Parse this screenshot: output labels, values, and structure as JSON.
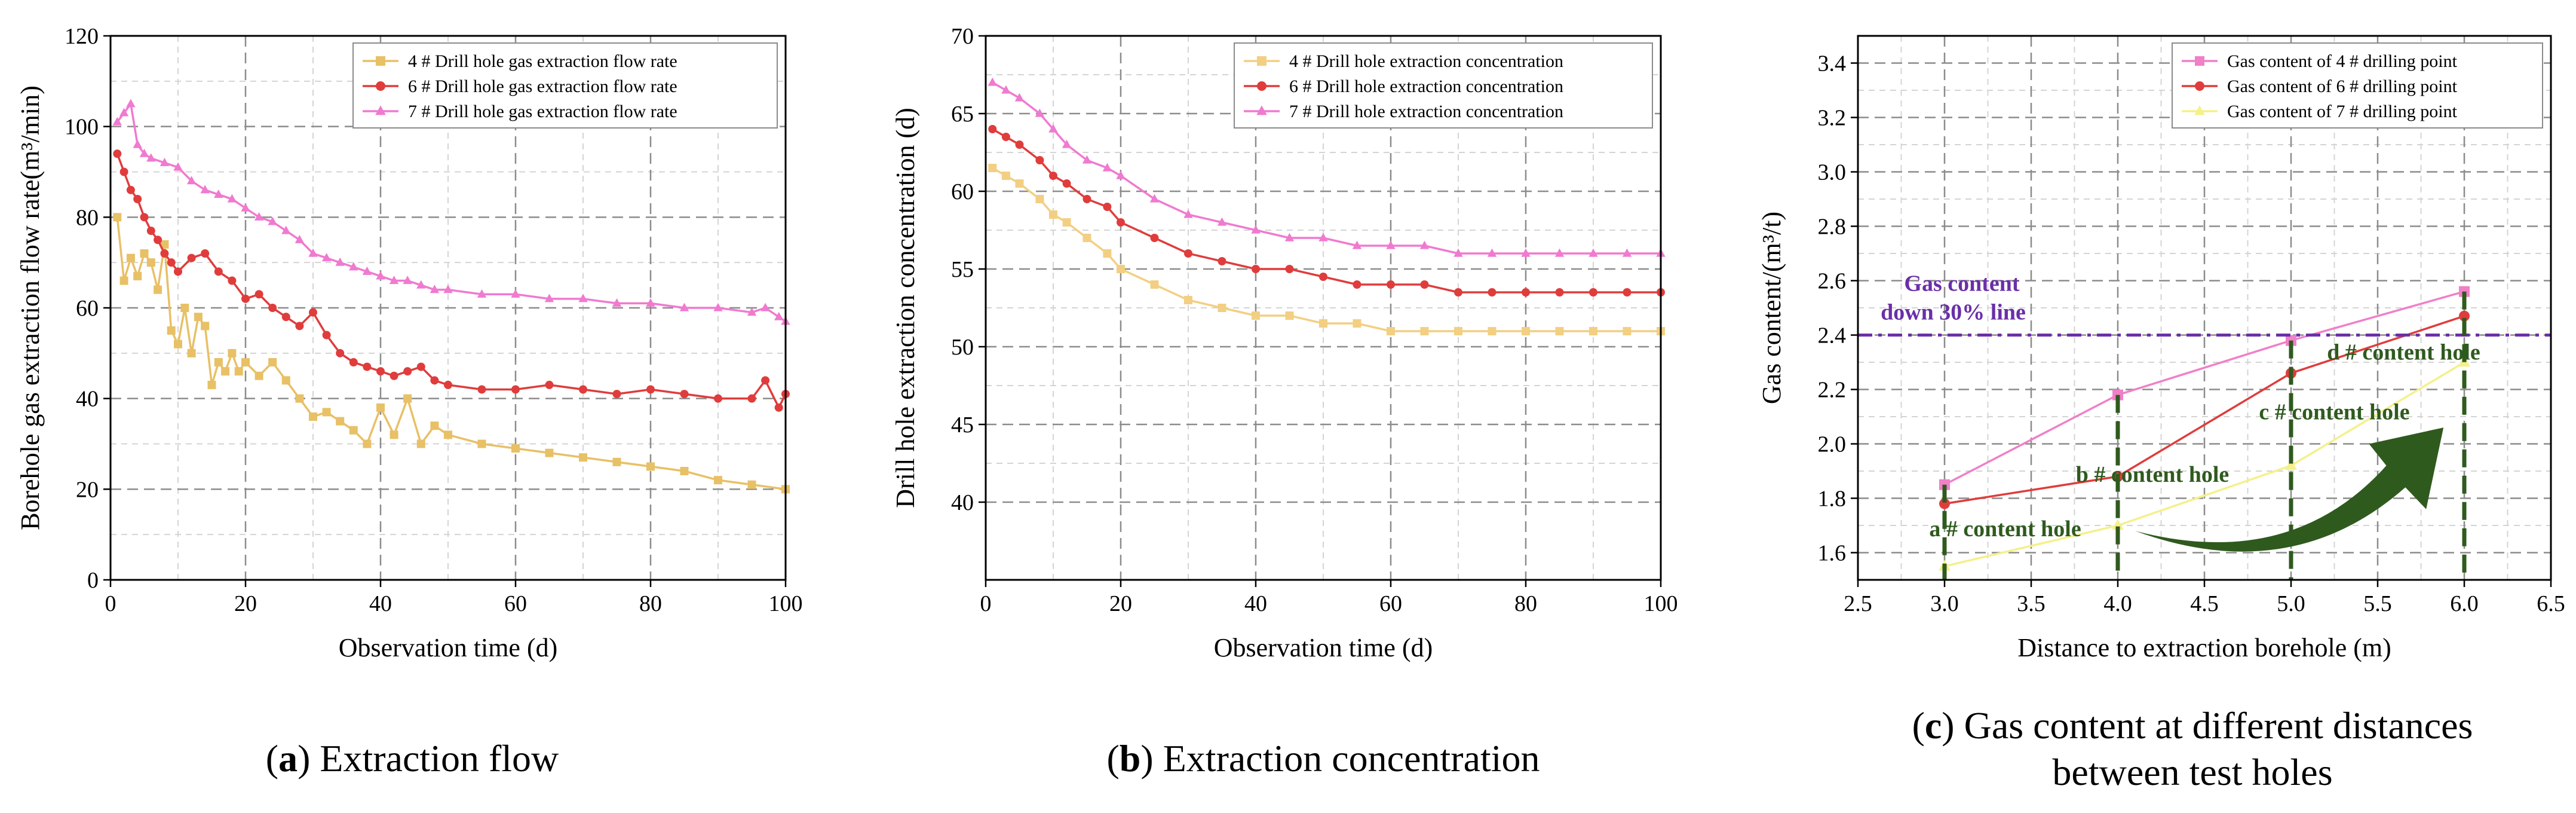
{
  "chart_data": [
    {
      "type": "line",
      "caption_letter": "a",
      "caption": ") Extraction flow",
      "caption_open": "(",
      "xlabel": "Observation time (d)",
      "ylabel": "Borehole gas extraction flow rate(m³/min)",
      "xlim": [
        0,
        100
      ],
      "ylim": [
        0,
        120
      ],
      "xticks": [
        0,
        20,
        40,
        60,
        80,
        100
      ],
      "yticks": [
        0,
        20,
        40,
        60,
        80,
        100,
        120
      ],
      "legend_position": "top-right",
      "series": [
        {
          "name": "4 # Drill hole gas extraction flow rate",
          "color": "#e8c066",
          "marker": "square",
          "x": [
            1,
            2,
            3,
            4,
            5,
            6,
            7,
            8,
            9,
            10,
            11,
            12,
            13,
            14,
            15,
            16,
            17,
            18,
            19,
            20,
            22,
            24,
            26,
            28,
            30,
            32,
            34,
            36,
            38,
            40,
            42,
            44,
            46,
            48,
            50,
            55,
            60,
            65,
            70,
            75,
            80,
            85,
            90,
            95,
            100
          ],
          "values": [
            80,
            66,
            71,
            67,
            72,
            70,
            64,
            74,
            55,
            52,
            60,
            50,
            58,
            56,
            43,
            48,
            46,
            50,
            46,
            48,
            45,
            48,
            44,
            40,
            36,
            37,
            35,
            33,
            30,
            38,
            32,
            40,
            30,
            34,
            32,
            30,
            29,
            28,
            27,
            26,
            25,
            24,
            22,
            21,
            20
          ]
        },
        {
          "name": "6 # Drill hole gas extraction flow rate",
          "color": "#e03c3c",
          "marker": "circle",
          "x": [
            1,
            2,
            3,
            4,
            5,
            6,
            7,
            8,
            9,
            10,
            12,
            14,
            16,
            18,
            20,
            22,
            24,
            26,
            28,
            30,
            32,
            34,
            36,
            38,
            40,
            42,
            44,
            46,
            48,
            50,
            55,
            60,
            65,
            70,
            75,
            80,
            85,
            90,
            95,
            97,
            99,
            100
          ],
          "values": [
            94,
            90,
            86,
            84,
            80,
            77,
            75,
            72,
            70,
            68,
            71,
            72,
            68,
            66,
            62,
            63,
            60,
            58,
            56,
            59,
            54,
            50,
            48,
            47,
            46,
            45,
            46,
            47,
            44,
            43,
            42,
            42,
            43,
            42,
            41,
            42,
            41,
            40,
            40,
            44,
            38,
            41
          ]
        },
        {
          "name": "7 # Drill hole gas extraction flow rate",
          "color": "#f07ad0",
          "marker": "triangle",
          "x": [
            1,
            2,
            3,
            4,
            5,
            6,
            8,
            10,
            12,
            14,
            16,
            18,
            20,
            22,
            24,
            26,
            28,
            30,
            32,
            34,
            36,
            38,
            40,
            42,
            44,
            46,
            48,
            50,
            55,
            60,
            65,
            70,
            75,
            80,
            85,
            90,
            95,
            97,
            99,
            100
          ],
          "values": [
            101,
            103,
            105,
            96,
            94,
            93,
            92,
            91,
            88,
            86,
            85,
            84,
            82,
            80,
            79,
            77,
            75,
            72,
            71,
            70,
            69,
            68,
            67,
            66,
            66,
            65,
            64,
            64,
            63,
            63,
            62,
            62,
            61,
            61,
            60,
            60,
            59,
            60,
            58,
            57
          ]
        }
      ]
    },
    {
      "type": "line",
      "caption_letter": "b",
      "caption": ") Extraction concentration",
      "caption_open": "(",
      "xlabel": "Observation time (d)",
      "ylabel": "Drill hole extraction concentration (d)",
      "xlim": [
        0,
        100
      ],
      "ylim": [
        35,
        70
      ],
      "xticks": [
        0,
        20,
        40,
        60,
        80,
        100
      ],
      "yticks": [
        40,
        45,
        50,
        55,
        60,
        65,
        70
      ],
      "legend_position": "top-right",
      "series": [
        {
          "name": "4 # Drill hole extraction concentration",
          "color": "#f2cf82",
          "marker": "square",
          "x": [
            1,
            3,
            5,
            8,
            10,
            12,
            15,
            18,
            20,
            25,
            30,
            35,
            40,
            45,
            50,
            55,
            60,
            65,
            70,
            75,
            80,
            85,
            90,
            95,
            100
          ],
          "values": [
            61.5,
            61,
            60.5,
            59.5,
            58.5,
            58,
            57,
            56,
            55,
            54,
            53,
            52.5,
            52,
            52,
            51.5,
            51.5,
            51,
            51,
            51,
            51,
            51,
            51,
            51,
            51,
            51
          ]
        },
        {
          "name": "6 # Drill hole extraction concentration",
          "color": "#e03c3c",
          "marker": "circle",
          "x": [
            1,
            3,
            5,
            8,
            10,
            12,
            15,
            18,
            20,
            25,
            30,
            35,
            40,
            45,
            50,
            55,
            60,
            65,
            70,
            75,
            80,
            85,
            90,
            95,
            100
          ],
          "values": [
            64,
            63.5,
            63,
            62,
            61,
            60.5,
            59.5,
            59,
            58,
            57,
            56,
            55.5,
            55,
            55,
            54.5,
            54,
            54,
            54,
            53.5,
            53.5,
            53.5,
            53.5,
            53.5,
            53.5,
            53.5
          ]
        },
        {
          "name": "7 # Drill hole extraction concentration",
          "color": "#f07ad0",
          "marker": "triangle",
          "x": [
            1,
            3,
            5,
            8,
            10,
            12,
            15,
            18,
            20,
            25,
            30,
            35,
            40,
            45,
            50,
            55,
            60,
            65,
            70,
            75,
            80,
            85,
            90,
            95,
            100
          ],
          "values": [
            67,
            66.5,
            66,
            65,
            64,
            63,
            62,
            61.5,
            61,
            59.5,
            58.5,
            58,
            57.5,
            57,
            57,
            56.5,
            56.5,
            56.5,
            56,
            56,
            56,
            56,
            56,
            56,
            56
          ]
        }
      ]
    },
    {
      "type": "line",
      "caption_letter": "c",
      "caption": ") Gas content at different distances",
      "caption_open": "(",
      "caption_line2": "between test holes",
      "xlabel": "Distance to extraction borehole (m)",
      "ylabel": "Gas content/(m³/t)",
      "xlim": [
        2.5,
        6.5
      ],
      "ylim": [
        1.5,
        3.5
      ],
      "xticks": [
        2.5,
        3.0,
        3.5,
        4.0,
        4.5,
        5.0,
        5.5,
        6.0,
        6.5
      ],
      "yticks": [
        1.6,
        1.8,
        2.0,
        2.2,
        2.4,
        2.6,
        2.8,
        3.0,
        3.2,
        3.4
      ],
      "legend_position": "top-right",
      "series": [
        {
          "name": "Gas content of 4 # drilling point",
          "color": "#f080c8",
          "marker": "square",
          "x": [
            3.0,
            4.0,
            5.0,
            6.0
          ],
          "values": [
            1.85,
            2.18,
            2.38,
            2.56
          ]
        },
        {
          "name": "Gas content of 6 # drilling point",
          "color": "#e03c3c",
          "marker": "circle",
          "x": [
            3.0,
            4.0,
            5.0,
            6.0
          ],
          "values": [
            1.78,
            1.88,
            2.26,
            2.47
          ]
        },
        {
          "name": "Gas content of 7 # drilling point",
          "color": "#f5f08a",
          "marker": "triangle",
          "x": [
            3.0,
            4.0,
            5.0,
            6.0
          ],
          "values": [
            1.55,
            1.7,
            1.92,
            2.3
          ]
        }
      ],
      "reference_line": {
        "y": 2.4,
        "label_line1": "Gas content",
        "label_line2": "down 30% line",
        "color": "#6a2fa8"
      },
      "annotations": [
        {
          "text": "a # content hole",
          "x": 3.0
        },
        {
          "text": "b # content hole",
          "x": 4.0
        },
        {
          "text": "c # content hole",
          "x": 5.0
        },
        {
          "text": "d # content hole",
          "x": 6.0
        }
      ]
    }
  ]
}
